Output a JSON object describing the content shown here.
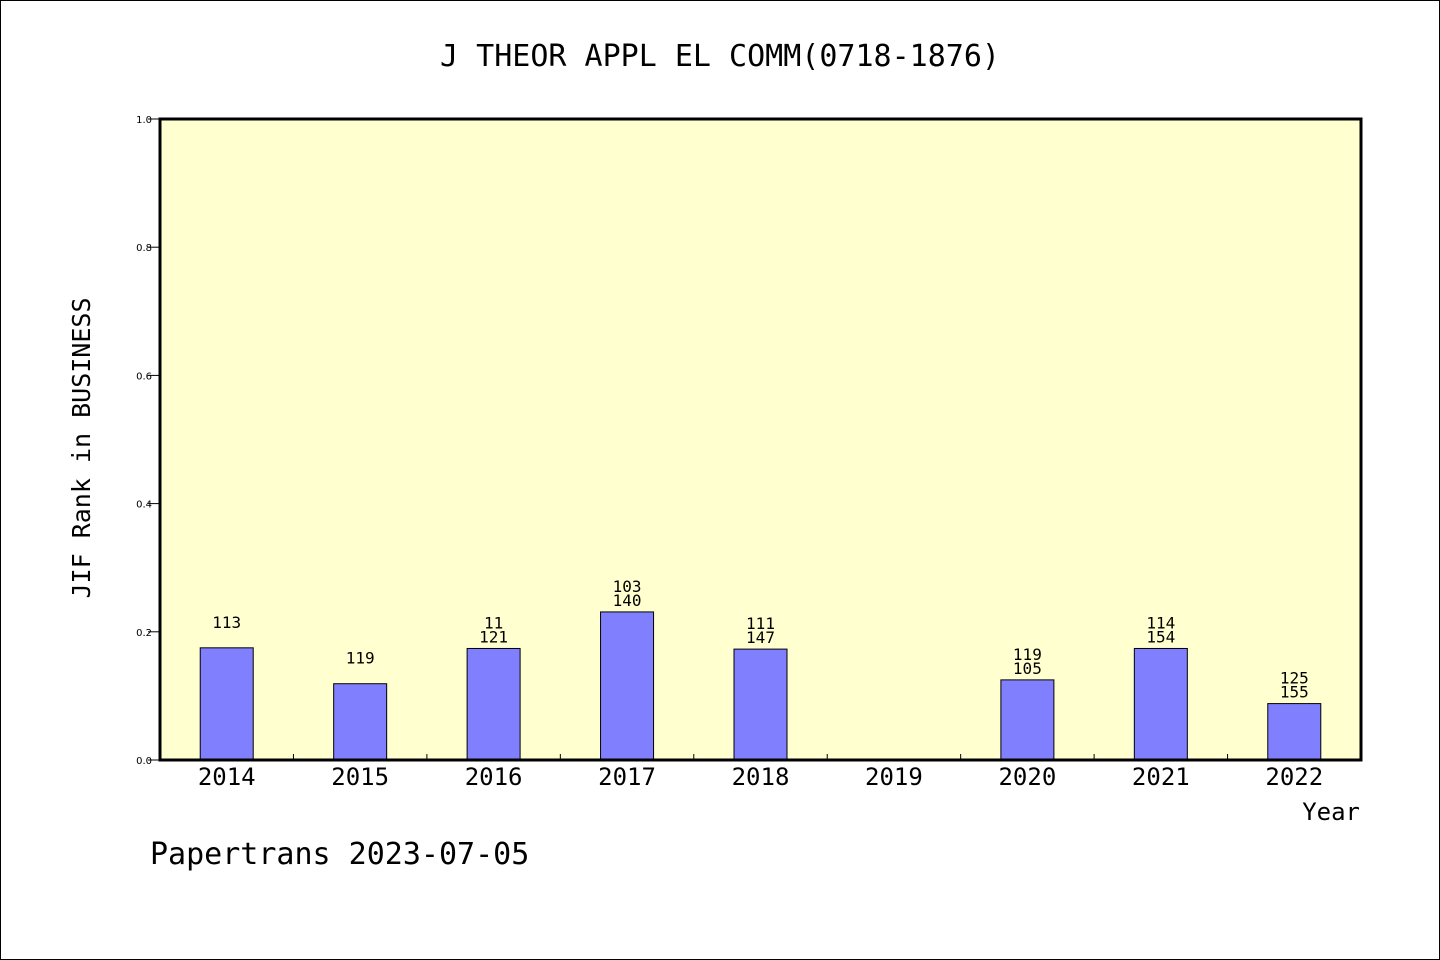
{
  "chart_data": {
    "type": "bar",
    "title": "J THEOR APPL EL COMM(0718-1876)",
    "xlabel": "Year",
    "ylabel": "JIF Rank in BUSINESS",
    "ylim": [
      0,
      1.0
    ],
    "yticks": [
      "0.0",
      "0.2",
      "0.4",
      "0.6",
      "0.8",
      "1.0"
    ],
    "ytick_values": [
      0,
      0.2,
      0.4,
      0.6,
      0.8,
      1.0
    ],
    "categories": [
      "2014",
      "2015",
      "2016",
      "2017",
      "2018",
      "2019",
      "2020",
      "2021",
      "2022"
    ],
    "values": [
      0.175,
      0.119,
      0.174,
      0.231,
      0.173,
      null,
      0.125,
      0.174,
      0.088
    ],
    "labels_top": [
      "113",
      "119",
      "11",
      "103",
      "111",
      "",
      "119",
      "114",
      "125"
    ],
    "labels_bottom": [
      "",
      "",
      "121",
      "140",
      "147",
      "",
      "105",
      "154",
      "155"
    ],
    "grid": false,
    "colors": {
      "bar_fill": "#8080ff",
      "bar_stroke": "#000000",
      "plot_bg": "#ffffd0",
      "frame": "#000000"
    }
  },
  "footer": {
    "text": "Papertrans 2023-07-05"
  }
}
